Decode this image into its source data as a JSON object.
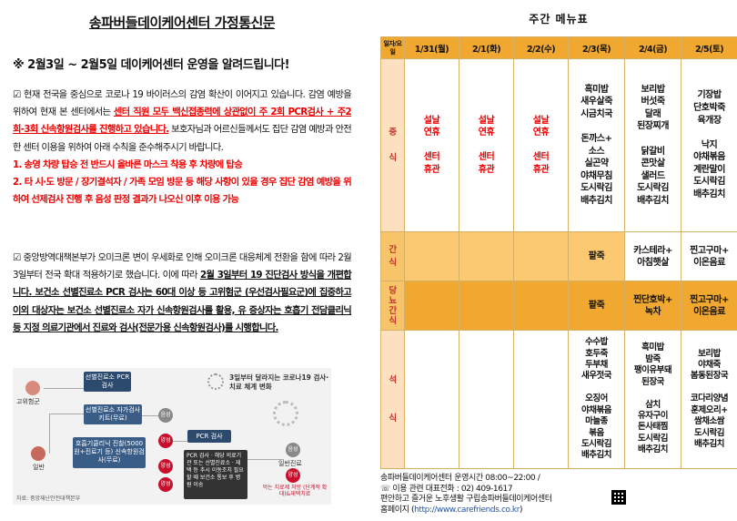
{
  "left": {
    "title": "송파버들데이케어센터 가정통신문",
    "headline": "※ 2월3일 ~ 2월5일 데이케어센터 운영을 알려드립니다!",
    "p1_a": "☑ 현재 전국을 중심으로 코로나 19 바이러스의 감염 확산이 이어지고 있습니다. 감염 예방을 위하여 현재 본 센터에서는 ",
    "p1_red": "센터 직원 모두 백신접종력에 상관없이 주 2회 PCR검사 + 주2회-3회 신속항원검사를 진행하고 있습니다.",
    "p1_b": " 보호자님과 어르신들께서도 집단 감염 예방과 안전한 센터 이용을 위하여 아래 수칙을 준수해주시기 바랍니다.",
    "p1_rule1": "1. 송영 차량 탑승 전 반드시 올바른 마스크 착용 후 차량에 탑승",
    "p1_rule2": "2. 타 시·도 방문 / 장기결석자 / 가족 모임 방문 등 해당 사항이 있을 경우 집단 감염 예방을 위하여 선제검사 진행 후 음성 판정 결과가 나오신 이후 이용 가능",
    "p2_a": "☑ 중앙방역대책본부가 오미크론 변이 우세화로 인해 오미크론 대응체계 전환을 함에 따라 2월 3일부터 전국 확대 적용하기로 했습니다. 이에 따라 ",
    "p2_bold": "2월 3일부터 19 진단검사 방식을 개편합니다.",
    "p2_u": " 보건소 선별진료소 PCR 검사는 60대 이상 등 고위험군 (우선검사필요군)에 집중하고 이외 대상자는 보건소 선별진료소 자가 신속항원검사를 활용, 유 증상자는 호흡기 전담클리닉 등 지정 의료기관에서 진료와 검사(전문가용 신속항원검사)를 시행합니다."
  },
  "infographic": {
    "headline": "3일부터 달라지는 코로나19 검사·치료 체계 변화",
    "group_high": "고위험군",
    "group_general": "일반",
    "box_screen_pcr": "선별진료소 PCR검사",
    "box_screen_self": "선별진료소 자가검사키트(무료)",
    "box_clinic": "호흡기클리닉 진찰(5000원+진료기 등) 신속항원검사(무료)",
    "box_pcr": "PCR 검사",
    "box_pcr_detail": "PCR 검사 · 해당 의료기관 또는 선별진료소 · 재택 등 추시 이동조치 필요할 때 보건소 통보 후 병원 이송",
    "negative": "음성",
    "positive": "양성",
    "neg_out": "일반진료",
    "pos_out": "먹는 치료제 처방 (단계적 확대)&재택치료",
    "source": "자료: 중앙재난안전대책본부"
  },
  "menu": {
    "title": "주간 메뉴표",
    "corner": "일자/요일",
    "days": [
      "1/31(월)",
      "2/1(화)",
      "2/2(수)",
      "2/3(목)",
      "2/4(금)",
      "2/5(토)"
    ],
    "row_labels": {
      "lunch": "중\n\n식",
      "snack": "간\n식",
      "diabetic": "당\n뇨\n간\n식",
      "dinner": "석\n\n\n식"
    },
    "lunch": [
      "설날\n연휴\n\n센터\n휴관",
      "설날\n연휴\n\n센터\n휴관",
      "설날\n연휴\n\n센터\n휴관",
      "흑미밥\n새우살죽\n시금치국\n\n돈까스+\n소스\n실곤약\n야채무침\n도시락김\n배추김치",
      "보리밥\n버섯죽\n달래\n된장찌개\n\n닭갈비\n콘맛살\n샐러드\n도시락김\n배추김치",
      "기장밥\n단호박죽\n육개장\n\n낙지\n야채볶음\n계란말이\n도시락김\n배추김치"
    ],
    "snack": [
      "",
      "",
      "",
      "팥죽",
      "카스테라+\n아침햇살",
      "찐고구마+\n이온음료"
    ],
    "diabetic": [
      "",
      "",
      "",
      "팥죽",
      "찐단호박+\n녹차",
      "찐고구마+\n이온음료"
    ],
    "dinner": [
      "",
      "",
      "",
      "수수밥\n호두죽\n두부채\n새우젓국\n\n오징어\n야채볶음\n마늘종\n볶음\n도시락김\n배추김치",
      "흑미밥\n밤죽\n팽이유부돼\n된장국\n\n삼치\n유자구이\n돈사태찜\n도시락김\n배추김치",
      "보리밥\n야채죽\n봄동된장국\n\n코다리양념\n훈제오리+\n쌈채소쌈\n도시락김\n배추김치"
    ]
  },
  "footer": {
    "line1": "송파버들데이케어센터 운영시간 08:00~22:00 /",
    "line2": "☏ 이용 관련 대표전화 : 02) 409-1617",
    "line3": "편안하고 즐거운 노후생활 구립송파버들데이케어센터",
    "line4_label": "홈페이지 (",
    "link": "http://www.carefriends.co.kr",
    "line4_end": ")"
  }
}
